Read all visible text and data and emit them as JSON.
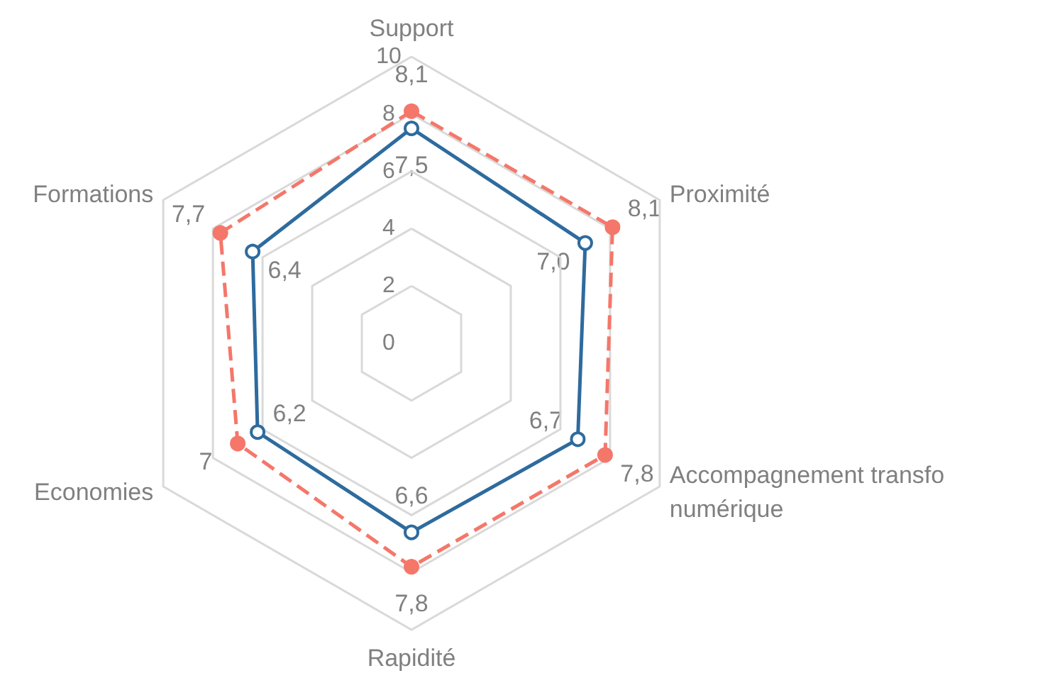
{
  "chart_data": {
    "type": "radar",
    "categories": [
      "Support",
      "Proximité",
      "Accompagnement transfo numérique",
      "Rapidité",
      "Economies",
      "Formations"
    ],
    "series": [
      {
        "color": "#2e6b9e",
        "values": [
          7.5,
          7.0,
          6.7,
          6.6,
          6.2,
          6.4
        ],
        "value_labels": [
          "7,5",
          "7,0",
          "6,7",
          "6,6",
          "6,2",
          "6,4"
        ],
        "line_style": "solid"
      },
      {
        "color": "#f4776a",
        "values": [
          8.1,
          8.1,
          7.8,
          7.8,
          7,
          7.7
        ],
        "value_labels": [
          "8,1",
          "8,1",
          "7,8",
          "7,8",
          "7",
          "7,7"
        ],
        "line_style": "dashed"
      }
    ],
    "ylim": [
      0,
      10
    ],
    "yticks": [
      0,
      2,
      4,
      6,
      8,
      10
    ],
    "grid": true,
    "marker": "circle"
  }
}
